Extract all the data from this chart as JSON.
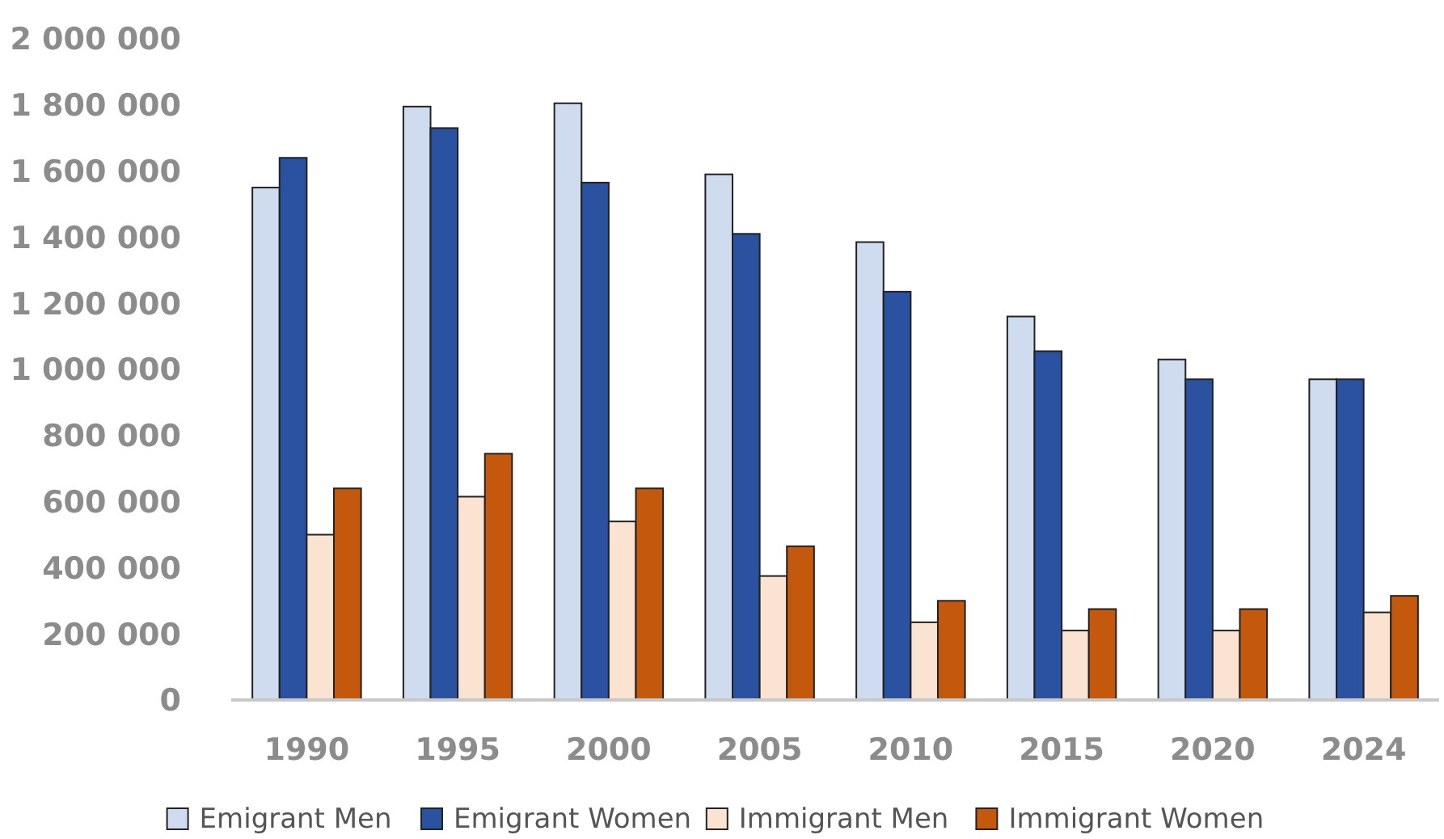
{
  "chart_data": {
    "type": "bar",
    "categories": [
      "1990",
      "1995",
      "2000",
      "2005",
      "2010",
      "2015",
      "2020",
      "2024"
    ],
    "series": [
      {
        "name": "Emigrant Men",
        "color": "#cfdbef",
        "values": [
          1550000,
          1795000,
          1805000,
          1590000,
          1385000,
          1160000,
          1030000,
          970000
        ]
      },
      {
        "name": "Emigrant Women",
        "color": "#2a52a0",
        "values": [
          1640000,
          1730000,
          1565000,
          1410000,
          1235000,
          1055000,
          970000,
          970000
        ]
      },
      {
        "name": "Immigrant Men",
        "color": "#fbe3d2",
        "values": [
          500000,
          615000,
          540000,
          375000,
          235000,
          210000,
          210000,
          265000
        ]
      },
      {
        "name": "Immigrant Women",
        "color": "#c4580c",
        "values": [
          640000,
          745000,
          640000,
          465000,
          300000,
          275000,
          275000,
          315000
        ]
      }
    ],
    "ylim": [
      0,
      2000000
    ],
    "yticks": [
      0,
      {
        "value": 200000,
        "label": "200 000"
      },
      {
        "value": 400000,
        "label": "400 000"
      },
      {
        "value": 600000,
        "label": "600 000"
      },
      {
        "value": 800000,
        "label": "800 000"
      },
      {
        "value": 1000000,
        "label": "1 000 000"
      },
      {
        "value": 1200000,
        "label": "1 200 000"
      },
      {
        "value": 1400000,
        "label": "1 400 000"
      },
      {
        "value": 1600000,
        "label": "1 600 000"
      },
      {
        "value": 1800000,
        "label": "1 800 000"
      },
      {
        "value": 2000000,
        "label": "2 000 000"
      }
    ],
    "grid": false,
    "legend": "bottom"
  }
}
